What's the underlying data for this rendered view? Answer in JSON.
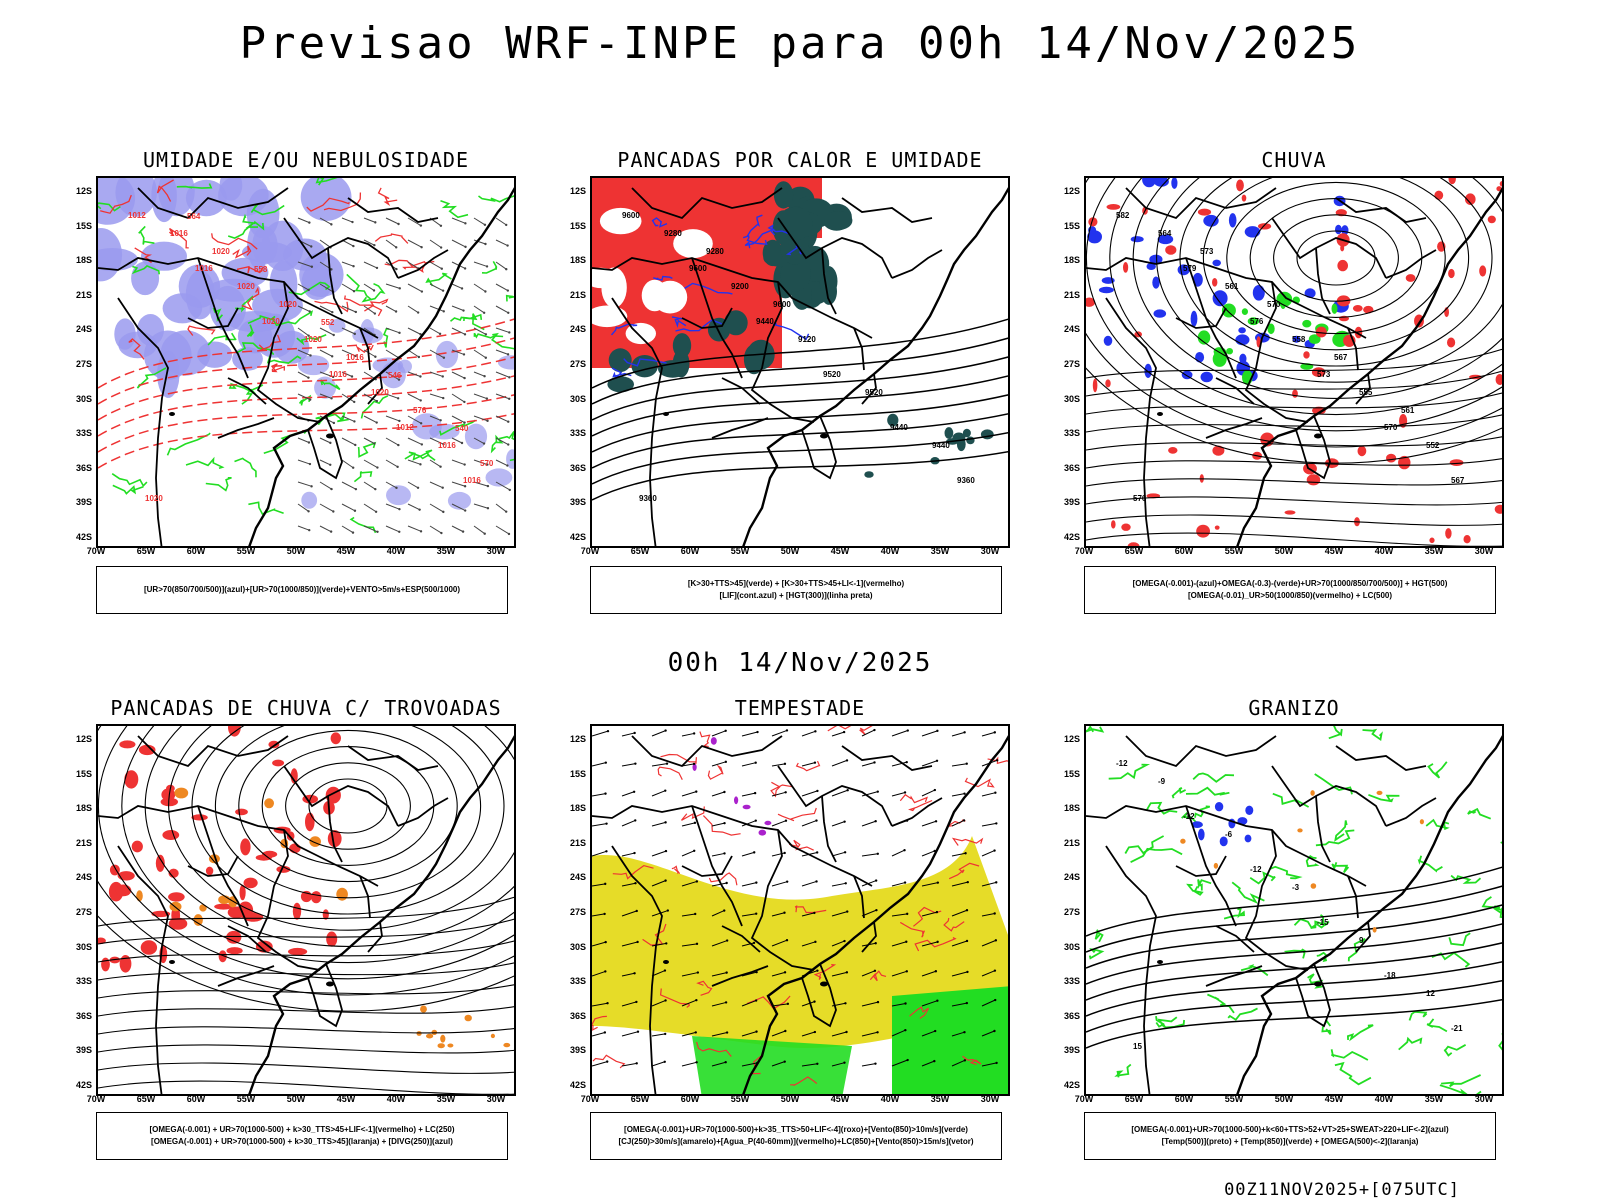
{
  "header": {
    "title": "Previsao WRF-INPE  para 00h 14/Nov/2025"
  },
  "mid_label": "00h 14/Nov/2025",
  "footer": "00Z11NOV2025+[075UTC]",
  "lat_ticks": [
    "12S",
    "15S",
    "18S",
    "21S",
    "24S",
    "27S",
    "30S",
    "33S",
    "36S",
    "39S",
    "42S"
  ],
  "lon_ticks": [
    "70W",
    "65W",
    "60W",
    "55W",
    "50W",
    "45W",
    "40W",
    "35W",
    "30W"
  ],
  "panels": [
    {
      "title": "UMIDADE E/OU NEBULOSIDADE",
      "legend": [
        "[UR>70(850/700/500)](azul)+[UR>70(1000/850)](verde)+VENTO>5m/s+ESP(500/1000)"
      ],
      "labels": [
        "1012",
        "1016",
        "1020",
        "1016",
        "1012",
        "1016",
        "1016",
        "1020",
        "1020",
        "1020",
        "1016",
        "1020",
        "1020",
        "1020",
        "1016",
        "576",
        "570",
        "564",
        "558",
        "552",
        "546",
        "540"
      ]
    },
    {
      "title": "PANCADAS POR CALOR E UMIDADE",
      "legend": [
        "[K>30+TTS>45](verde) + [K>30+TTS>45+LI<-1](vermelho)",
        "[LIF](cont.azul) + [HGT(300)](linha preta)"
      ],
      "labels": [
        "9600",
        "9600",
        "9440",
        "9520",
        "9440",
        "9360",
        "9280",
        "9200",
        "9120",
        "9520",
        "9440",
        "9360",
        "9280",
        "9600"
      ]
    },
    {
      "title": "CHUVA",
      "legend": [
        "[OMEGA(-0.001)-(azul)+OMEGA(-0.3)-(verde)+UR>70(1000/850/700/500)] + HGT(500)",
        "[OMEGA(-0.01)_UR>50(1000/850)(vermelho) + LC(500)"
      ],
      "labels": [
        "582",
        "579",
        "576",
        "573",
        "570",
        "567",
        "564",
        "561",
        "558",
        "555",
        "552",
        "576",
        "573",
        "570",
        "567",
        "561"
      ]
    },
    {
      "title": "PANCADAS DE CHUVA C/ TROVOADAS",
      "legend": [
        "[OMEGA(-0.001) + UR>70(1000-500) + k>30_TTS>45+LIF<-1](vermelho) + LC(250)",
        "[OMEGA(-0.001) + UR>70(1000-500) + k>30_TTS>45](laranja) + [DIVG(250)](azul)"
      ],
      "labels": []
    },
    {
      "title": "TEMPESTADE",
      "legend": [
        "[OMEGA(-0.001)+UR>70(1000-500)+k>35_TTS>50+LIF<-4](roxo)+[Vento(850)>10m/s](verde)",
        "[CJ(250)>30m/s](amarelo)+[Agua_P(40-60mm)](vermelho)+LC(850)+[Vento(850)>15m/s](vetor)"
      ],
      "labels": []
    },
    {
      "title": "GRANIZO",
      "legend": [
        "[OMEGA(-0.001)+UR>70(1000-500)+k<60+TTS>52+VT>25+SWEAT>220+LIF<-2](azul)",
        "[Temp(500)](preto) + [Temp(850)](verde) + [OMEGA(500)<-2](laranja)"
      ],
      "labels": [
        "-12",
        "-12",
        "-12",
        "-15",
        "-18",
        "-21",
        "-9",
        "-6",
        "-3",
        "9",
        "12",
        "15"
      ]
    }
  ],
  "colors": {
    "blue_fill": "#9a9aee",
    "green": "#22dd22",
    "red": "#ee3333",
    "dark_teal": "#1f4f4f",
    "yellow": "#e6dc28",
    "orange": "#ee8822",
    "blue": "#2233ee",
    "purple": "#aa22cc"
  }
}
